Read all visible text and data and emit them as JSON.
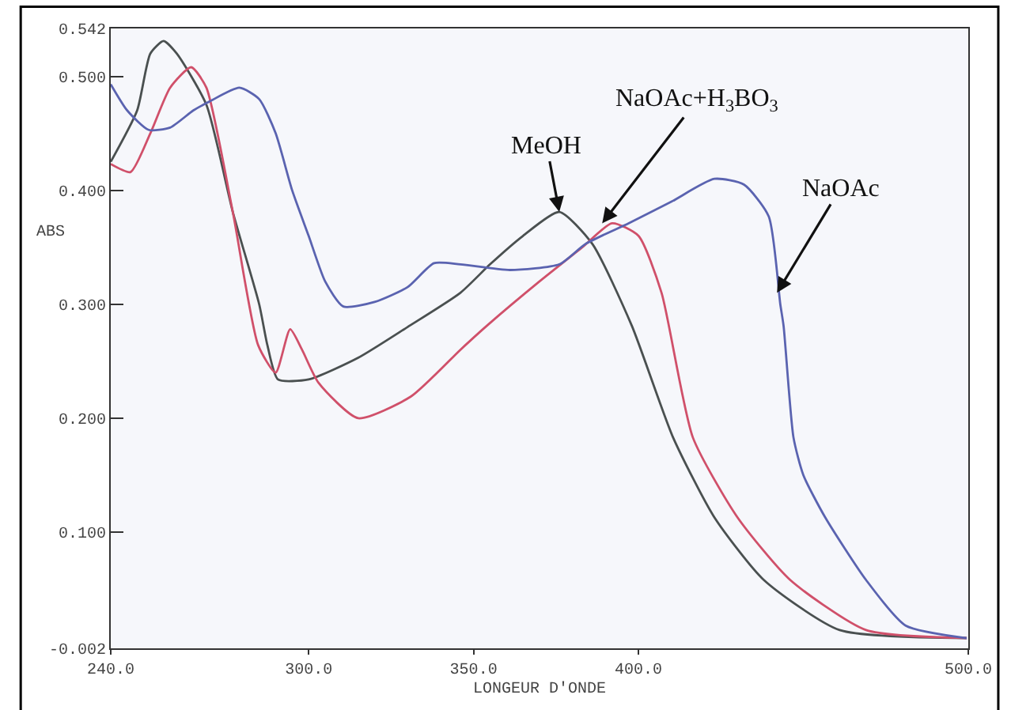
{
  "chart_data": {
    "type": "line",
    "xlabel": "LONGEUR D'ONDE",
    "ylabel": "ABS",
    "xlim": [
      240,
      500
    ],
    "ylim": [
      -0.002,
      0.542
    ],
    "xticks": [
      {
        "value": 240,
        "label": "240.0"
      },
      {
        "value": 300,
        "label": "300.0"
      },
      {
        "value": 350,
        "label": "350.0"
      },
      {
        "value": 400,
        "label": "400.0"
      },
      {
        "value": 500,
        "label": "500.0"
      }
    ],
    "yticks": [
      {
        "value": -0.002,
        "label": "-0.002"
      },
      {
        "value": 0.1,
        "label": "0.100"
      },
      {
        "value": 0.2,
        "label": "0.200"
      },
      {
        "value": 0.3,
        "label": "0.300"
      },
      {
        "value": 0.4,
        "label": "0.400"
      },
      {
        "value": 0.5,
        "label": "0.500"
      },
      {
        "value": 0.542,
        "label": "0.542"
      }
    ],
    "grid": false,
    "marker": "none",
    "line_style": "solid",
    "series": [
      {
        "color": "#4a5050",
        "x": [
          240,
          248,
          252,
          256,
          260,
          269,
          277,
          285,
          287.5,
          290.7,
          300,
          315,
          330,
          346,
          355,
          365,
          376,
          386,
          398,
          410.5,
          423,
          438,
          461,
          499.5
        ],
        "values": [
          0.425,
          0.47,
          0.52,
          0.531,
          0.52,
          0.475,
          0.381,
          0.3,
          0.264,
          0.234,
          0.234,
          0.253,
          0.28,
          0.31,
          0.335,
          0.36,
          0.381,
          0.353,
          0.281,
          0.183,
          0.113,
          0.058,
          0.014,
          0.007
        ]
      },
      {
        "color": "#d0506a",
        "x": [
          240,
          246,
          252,
          258,
          264.4,
          269,
          277,
          284.7,
          290,
          294.4,
          298,
          303,
          315,
          331,
          346,
          354,
          370,
          383,
          392,
          400,
          407,
          416.5,
          430,
          446,
          469,
          499.5
        ],
        "values": [
          0.423,
          0.416,
          0.45,
          0.49,
          0.508,
          0.49,
          0.381,
          0.264,
          0.24,
          0.278,
          0.26,
          0.231,
          0.2,
          0.219,
          0.26,
          0.281,
          0.32,
          0.35,
          0.371,
          0.36,
          0.31,
          0.183,
          0.113,
          0.058,
          0.014,
          0.007
        ]
      },
      {
        "color": "#5a63b0",
        "x": [
          240,
          245,
          251.5,
          258,
          265,
          270,
          279,
          285,
          290,
          295,
          300,
          305,
          310.5,
          320,
          330,
          338,
          346,
          361,
          376,
          384,
          397,
          410,
          423,
          432,
          439.5,
          443,
          444,
          447,
          450,
          456.6,
          469,
          481,
          499.5
        ],
        "values": [
          0.493,
          0.47,
          0.453,
          0.455,
          0.47,
          0.478,
          0.49,
          0.48,
          0.45,
          0.4,
          0.36,
          0.32,
          0.298,
          0.302,
          0.315,
          0.336,
          0.335,
          0.33,
          0.335,
          0.353,
          0.371,
          0.39,
          0.41,
          0.405,
          0.377,
          0.3,
          0.281,
          0.183,
          0.15,
          0.113,
          0.058,
          0.018,
          0.007
        ]
      }
    ],
    "annotations": [
      {
        "text": "MeOH",
        "x": 376,
        "y": 0.381
      },
      {
        "text": "NaOAc+H$_{3}$BO$_{3}$",
        "x": 389,
        "y": 0.371
      },
      {
        "text": "NaOAc",
        "x": 442,
        "y": 0.31
      }
    ]
  }
}
